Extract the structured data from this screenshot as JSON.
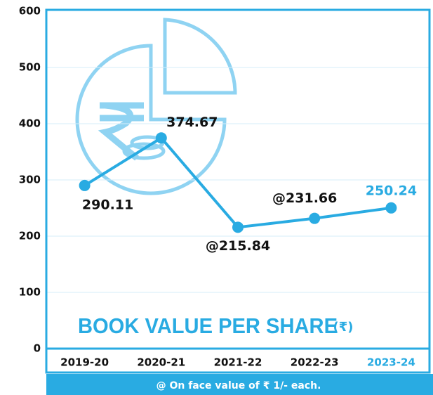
{
  "chart_data": {
    "type": "line",
    "title": "BOOK VALUE PER SHARE",
    "unit": "(₹)",
    "note": "@ On face value of  ₹ 1/- each.",
    "categories": [
      "2019-20",
      "2020-21",
      "2021-22",
      "2022-23",
      "2023-24"
    ],
    "series": [
      {
        "name": "Book value per share",
        "color": "#29abe2",
        "values": [
          290.11,
          374.67,
          215.84,
          231.66,
          250.24
        ],
        "value_labels": [
          "290.11",
          "374.67",
          "@215.84",
          "@231.66",
          "250.24"
        ]
      }
    ],
    "ylim": [
      0,
      600
    ],
    "yticks": [
      0,
      100,
      200,
      300,
      400,
      500,
      600
    ],
    "grid": true
  }
}
